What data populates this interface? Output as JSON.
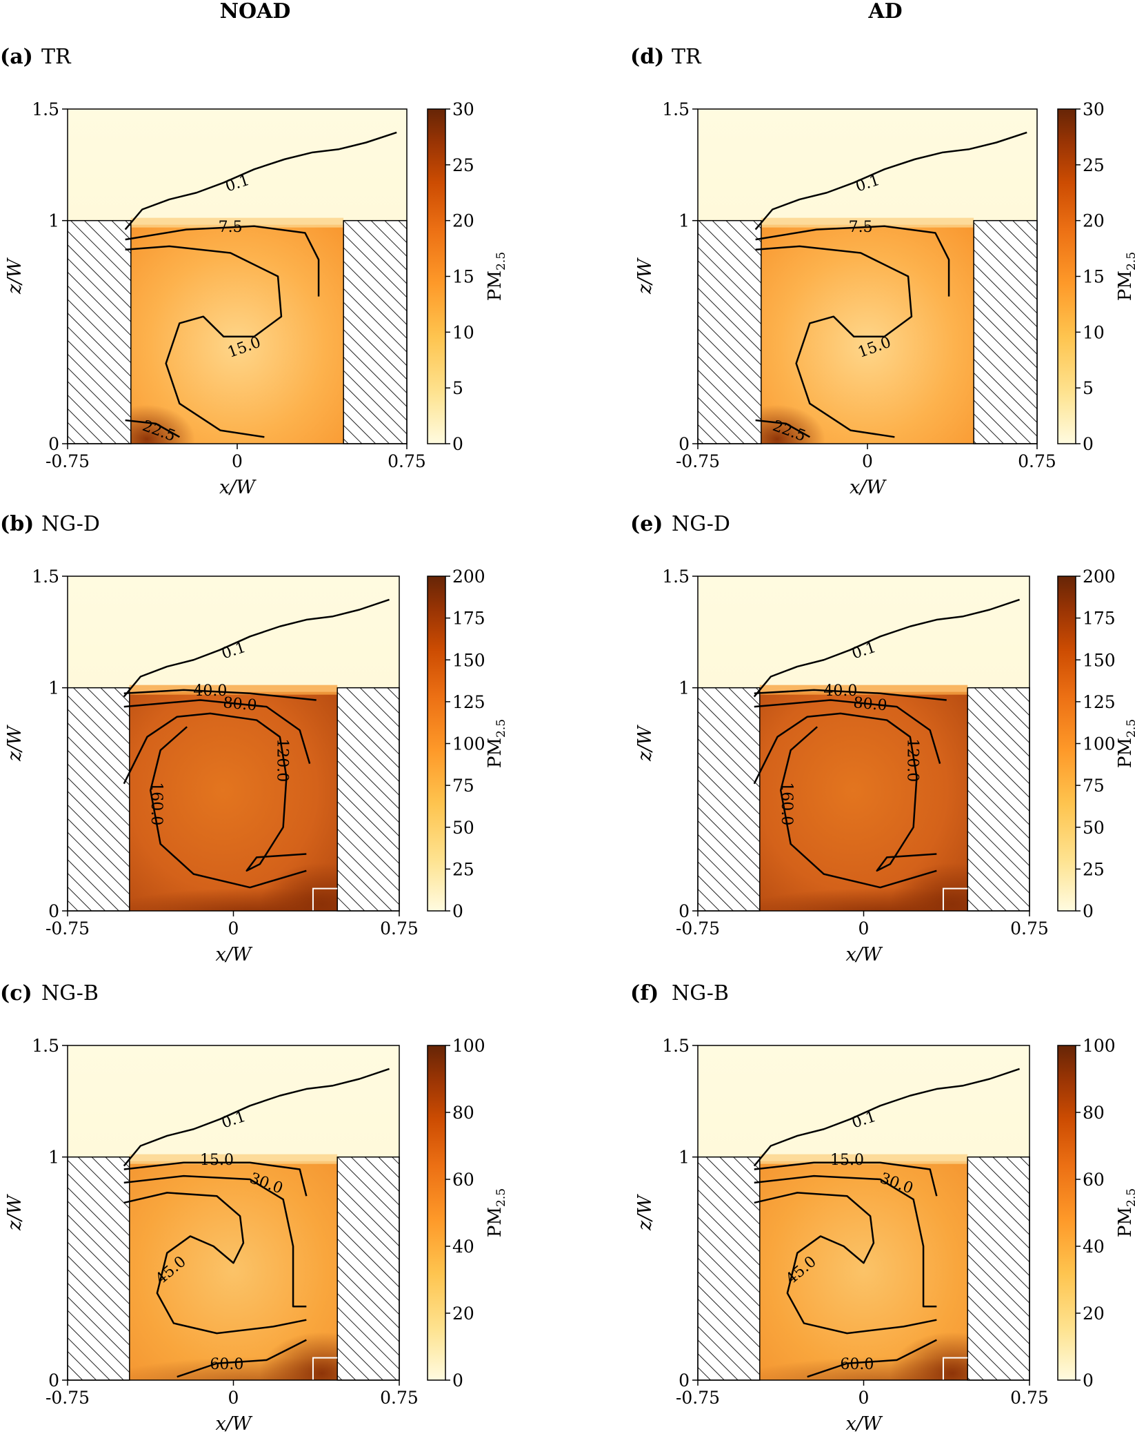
{
  "columns": [
    "NOAD",
    "AD"
  ],
  "panels": [
    {
      "tag": "(a)",
      "name": "TR",
      "cmax": 30,
      "cticks": [
        "0",
        "5",
        "10",
        "15",
        "20",
        "25",
        "30"
      ],
      "levels": [
        {
          "label": "0.1"
        },
        {
          "label": "7.5"
        },
        {
          "label": "15.0"
        },
        {
          "label": "22.5"
        }
      ],
      "emitter": false
    },
    {
      "tag": "(b)",
      "name": "NG-D",
      "cmax": 200,
      "cticks": [
        "0",
        "25",
        "50",
        "75",
        "100",
        "125",
        "150",
        "175",
        "200"
      ],
      "levels": [
        {
          "label": "0.1"
        },
        {
          "label": "40.0"
        },
        {
          "label": "80.0"
        },
        {
          "label": "120.0"
        },
        {
          "label": "160.0"
        }
      ],
      "emitter": true
    },
    {
      "tag": "(c)",
      "name": "NG-B",
      "cmax": 100,
      "cticks": [
        "0",
        "20",
        "40",
        "60",
        "80",
        "100"
      ],
      "levels": [
        {
          "label": "0.1"
        },
        {
          "label": "15.0"
        },
        {
          "label": "30.0"
        },
        {
          "label": "45.0"
        },
        {
          "label": "60.0"
        }
      ],
      "emitter": true
    },
    {
      "tag": "(d)",
      "name": "TR",
      "cmax": 30,
      "cticks": [
        "0",
        "5",
        "10",
        "15",
        "20",
        "25",
        "30"
      ],
      "levels": [
        {
          "label": "0.1"
        },
        {
          "label": "7.5"
        },
        {
          "label": "15.0"
        },
        {
          "label": "22.5"
        }
      ],
      "emitter": false
    },
    {
      "tag": "(e)",
      "name": "NG-D",
      "cmax": 200,
      "cticks": [
        "0",
        "25",
        "50",
        "75",
        "100",
        "125",
        "150",
        "175",
        "200"
      ],
      "levels": [
        {
          "label": "0.1"
        },
        {
          "label": "40.0"
        },
        {
          "label": "80.0"
        },
        {
          "label": "120.0"
        },
        {
          "label": "160.0"
        }
      ],
      "emitter": true
    },
    {
      "tag": "(f)",
      "name": "NG-B",
      "cmax": 100,
      "cticks": [
        "0",
        "20",
        "40",
        "60",
        "80",
        "100"
      ],
      "levels": [
        {
          "label": "0.1"
        },
        {
          "label": "15.0"
        },
        {
          "label": "30.0"
        },
        {
          "label": "45.0"
        },
        {
          "label": "60.0"
        }
      ],
      "emitter": true
    }
  ],
  "chart_data": {
    "type": "heatmap",
    "x_label": "x/W",
    "y_label": "z/W",
    "colorbar_label": "PM2.5",
    "colorbar_label_sub": "2.5",
    "colorbar_label_main": "PM",
    "xlim": [
      -0.75,
      0.75
    ],
    "ylim": [
      0,
      1.5
    ],
    "x_ticks": [
      "-0.75",
      "0",
      "0.75"
    ],
    "y_ticks": [
      "0",
      "1",
      "1.5"
    ],
    "colormap": [
      "#fffbe0",
      "#fee391",
      "#fec44f",
      "#fe9929",
      "#ec7014",
      "#cc4c02",
      "#993404",
      "#662506"
    ],
    "hatch_color": "#222222"
  }
}
